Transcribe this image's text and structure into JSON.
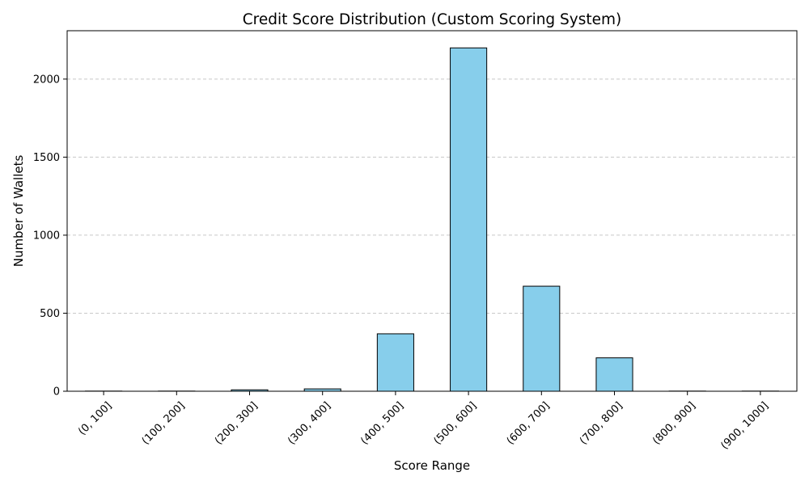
{
  "chart_data": {
    "type": "bar",
    "title": "Credit Score Distribution (Custom Scoring System)",
    "xlabel": "Score Range",
    "ylabel": "Number of Wallets",
    "categories": [
      "(0, 100]",
      "(100, 200]",
      "(200, 300]",
      "(300, 400]",
      "(400, 500]",
      "(500, 600]",
      "(600, 700]",
      "(700, 800]",
      "(800, 900]",
      "(900, 1000]"
    ],
    "values": [
      1,
      1,
      9,
      15,
      368,
      2200,
      673,
      214,
      1,
      1
    ],
    "ylim": [
      0,
      2310
    ],
    "yticks": [
      0,
      500,
      1000,
      1500,
      2000
    ],
    "grid": "y-dashed",
    "bar_color": "#87CEEB",
    "edge_color": "#000000",
    "grid_color": "#c8c8c8"
  }
}
